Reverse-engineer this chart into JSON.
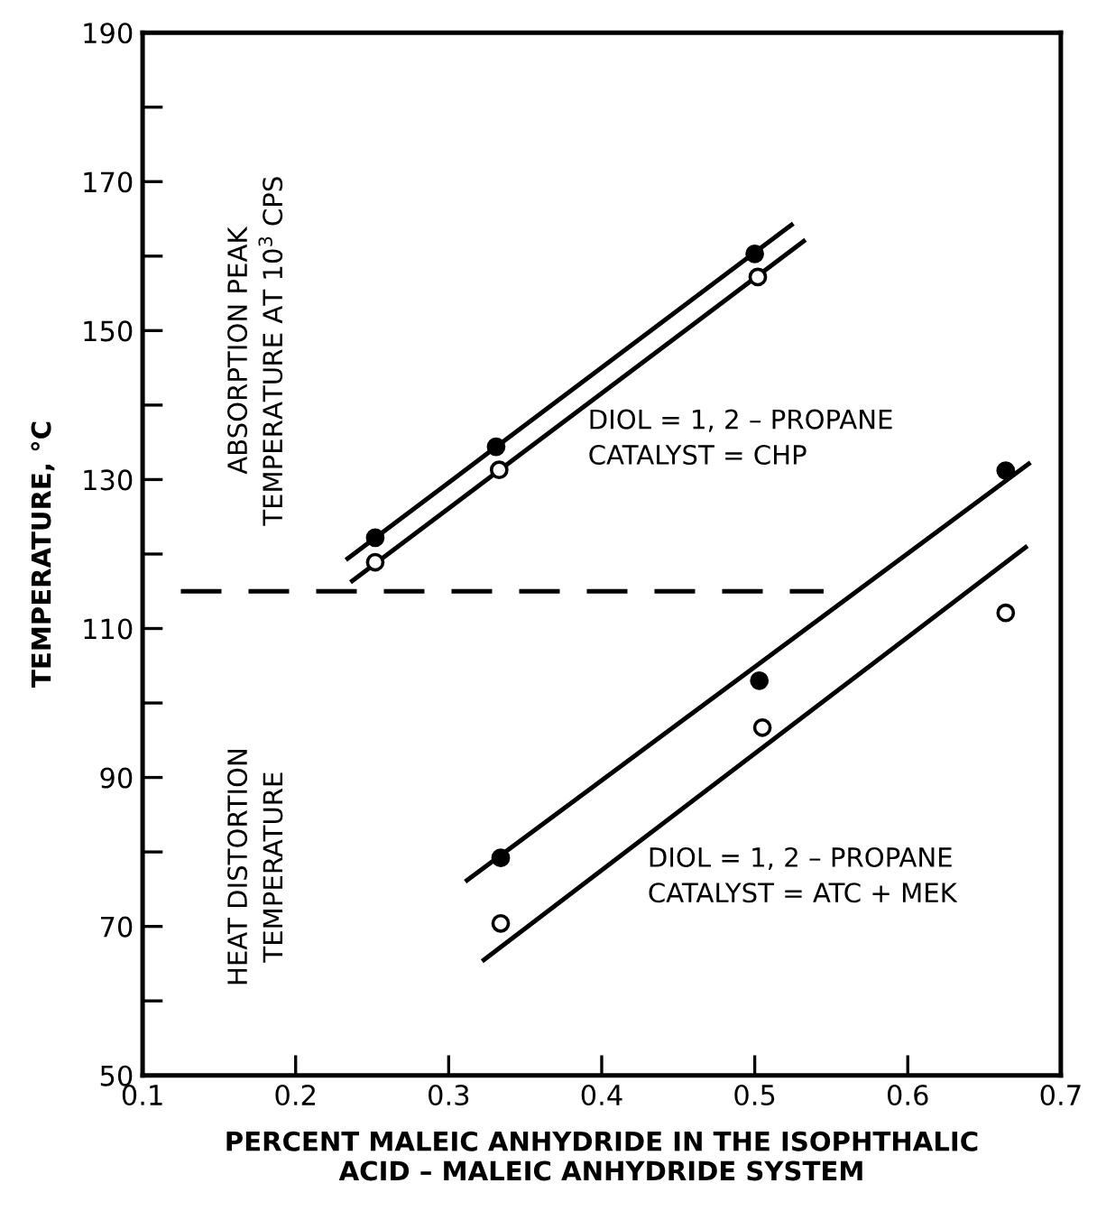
{
  "chart_data": {
    "type": "scatter",
    "xlabel": "PERCENT MALEIC ANHYDRIDE IN THE ISOPHTHALIC\nACID – MALEIC ANHYDRIDE SYSTEM",
    "ylabel": "TEMPERATURE, °C",
    "xlim": [
      0.1,
      0.7
    ],
    "xticks": [
      0.1,
      0.2,
      0.3,
      0.4,
      0.5,
      0.6,
      0.7
    ],
    "ylim": [
      50,
      190
    ],
    "yticks": [
      50,
      {
        "value": 60,
        "label": null
      },
      70,
      {
        "value": 80,
        "label": null
      },
      90,
      {
        "value": 100,
        "label": null
      },
      110,
      {
        "value": 120,
        "label": null
      },
      130,
      {
        "value": 140,
        "label": null
      },
      150,
      {
        "value": 160,
        "label": null
      },
      170,
      {
        "value": 180,
        "label": null
      },
      190
    ],
    "grid": false,
    "series": [
      {
        "color": "#000000",
        "marker": "circle",
        "x": [
          0.252,
          0.331,
          0.5
        ],
        "values": [
          122.2,
          134.4,
          160.3
        ]
      },
      {
        "color": "#ffffff",
        "marker": "circle",
        "x": [
          0.252,
          0.333,
          0.502
        ],
        "values": [
          118.9,
          131.3,
          157.2
        ]
      },
      {
        "type": "line",
        "color": "#000000",
        "line_style": "solid",
        "x": [
          0.234,
          0.524
        ],
        "values": [
          119.4,
          164.2
        ]
      },
      {
        "type": "line",
        "color": "#000000",
        "line_style": "solid",
        "x": [
          0.237,
          0.532
        ],
        "values": [
          116.4,
          162.0
        ]
      },
      {
        "color": "#000000",
        "marker": "circle",
        "x": [
          0.334,
          0.503,
          0.664
        ],
        "values": [
          79.2,
          103.0,
          131.2
        ]
      },
      {
        "color": "#ffffff",
        "marker": "circle",
        "x": [
          0.334,
          0.505,
          0.664
        ],
        "values": [
          70.4,
          96.7,
          112.1
        ]
      },
      {
        "type": "line",
        "color": "#000000",
        "line_style": "solid",
        "x": [
          0.312,
          0.679
        ],
        "values": [
          76.2,
          132.1
        ]
      },
      {
        "type": "line",
        "color": "#000000",
        "line_style": "solid",
        "x": [
          0.323,
          0.677
        ],
        "values": [
          65.5,
          120.9
        ]
      },
      {
        "type": "line",
        "color": "#000000",
        "line_style": "dashed",
        "x": [
          0.125,
          0.545
        ],
        "values": [
          115,
          115
        ]
      }
    ],
    "annotations": [
      "ABSORPTION PEAK\nTEMPERATURE AT 10$^{3}$ CPS",
      "HEAT DISTORTION\nTEMPERATURE",
      "DIOL = 1, 2 – PROPANE\nCATALYST = CHP",
      "DIOL = 1, 2 – PROPANE\nCATALYST = ATC + MEK"
    ]
  }
}
